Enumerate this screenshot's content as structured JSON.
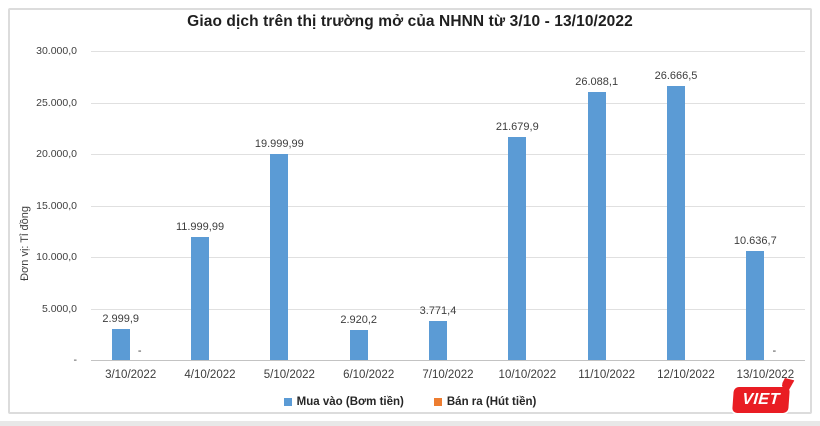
{
  "page": {
    "logo_text": "VIET"
  },
  "chart_data": {
    "type": "bar",
    "title": "Giao dịch trên thị trường mở của NHNN từ 3/10 - 13/10/2022",
    "ylabel": "Đơn vị: Tỉ đồng",
    "xlabel": "",
    "categories": [
      "3/10/2022",
      "4/10/2022",
      "5/10/2022",
      "6/10/2022",
      "7/10/2022",
      "10/10/2022",
      "11/10/2022",
      "12/10/2022",
      "13/10/2022"
    ],
    "series": [
      {
        "name": "Mua vào (Bơm tiền)",
        "color": "#5B9BD5",
        "values": [
          2999.9,
          11999.99,
          19999.99,
          2920.2,
          3771.4,
          21679.9,
          26088.1,
          26666.5,
          10636.7
        ],
        "data_labels": [
          "2.999,9",
          "11.999,99",
          "19.999,99",
          "2.920,2",
          "3.771,4",
          "21.679,9",
          "26.088,1",
          "26.666,5",
          "10.636,7"
        ]
      },
      {
        "name": "Bán ra (Hút tiền)",
        "color": "#ED7D31",
        "values": [
          0,
          null,
          null,
          null,
          null,
          null,
          null,
          null,
          0
        ],
        "data_labels": [
          "-",
          "",
          "",
          "",
          "",
          "",
          "",
          "",
          "-"
        ]
      }
    ],
    "ylim": [
      0,
      30000
    ],
    "yticks": [
      {
        "value": 0,
        "label": "-"
      },
      {
        "value": 5000,
        "label": "5.000,0"
      },
      {
        "value": 10000,
        "label": "10.000,0"
      },
      {
        "value": 15000,
        "label": "15.000,0"
      },
      {
        "value": 20000,
        "label": "20.000,0"
      },
      {
        "value": 25000,
        "label": "25.000,0"
      },
      {
        "value": 30000,
        "label": "30.000,0"
      }
    ],
    "grid": true,
    "legend_position": "bottom"
  },
  "colors": {
    "bar_blue": "#5B9BD5",
    "bar_orange": "#ED7D31",
    "gridline": "#E0E0E0",
    "axis_line": "#C3C3C3",
    "text": "#3D3D3D",
    "logo_red": "#E91D23"
  }
}
